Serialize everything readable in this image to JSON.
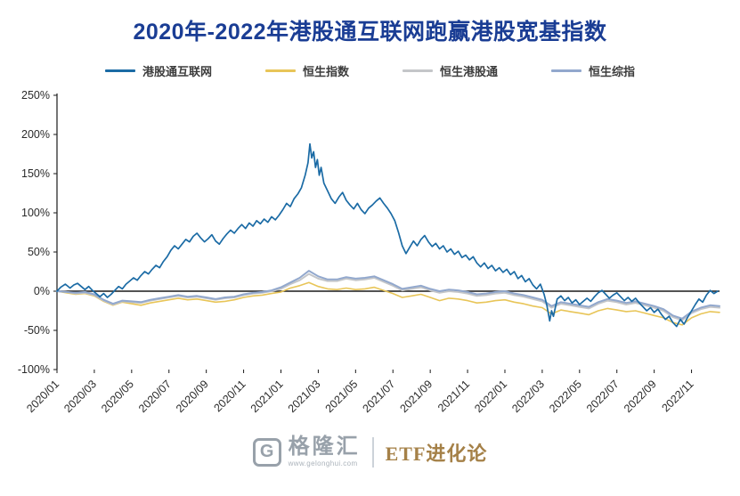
{
  "title": "2020年-2022年港股通互联网跑赢港股宽基指数",
  "colors": {
    "title": "#1a3d94",
    "axis": "#1a1a1a",
    "tick_text": "#2a2a2a"
  },
  "legend": [
    {
      "label": "港股通互联网",
      "color": "#1b6ba5"
    },
    {
      "label": "恒生指数",
      "color": "#e8c558"
    },
    {
      "label": "恒生港股通",
      "color": "#c4c6c9"
    },
    {
      "label": "恒生综指",
      "color": "#92a8cd"
    }
  ],
  "footer": {
    "logo_letter": "G",
    "logo_name": "格隆汇",
    "logo_url": "www.gelonghui.com",
    "brand": "ETF进化论"
  },
  "chart_data": {
    "type": "line",
    "title": "2020年-2022年港股通互联网跑赢港股宽基指数",
    "x_note": "x = months since 2020/01, values are cumulative return in %",
    "xlim": [
      0,
      35.5
    ],
    "ylim": [
      -100,
      250
    ],
    "grid": false,
    "legend_position": "top",
    "y_ticks": [
      250,
      200,
      150,
      100,
      50,
      0,
      -50,
      -100
    ],
    "y_tick_suffix": "%",
    "x_tick_positions": [
      0,
      2,
      4,
      6,
      8,
      10,
      12,
      14,
      16,
      18,
      20,
      22,
      24,
      26,
      28,
      30,
      32,
      34
    ],
    "x_tick_labels": [
      "2020/01",
      "2020/03",
      "2020/05",
      "2020/07",
      "2020/09",
      "2020/11",
      "2021/01",
      "2021/03",
      "2021/05",
      "2021/07",
      "2021/09",
      "2021/11",
      "2022/01",
      "2022/03",
      "2022/05",
      "2022/07",
      "2022/09",
      "2022/11"
    ],
    "series": [
      {
        "name": "恒生指数",
        "color": "#e8c558",
        "width": 1.6,
        "x_start": 0,
        "x_step": 0.5,
        "values": [
          0,
          -2,
          -4,
          -3,
          -6,
          -13,
          -18,
          -14,
          -16,
          -18,
          -15,
          -13,
          -11,
          -9,
          -11,
          -10,
          -12,
          -14,
          -13,
          -11,
          -8,
          -6,
          -5,
          -3,
          -1,
          4,
          7,
          11,
          6,
          3,
          2,
          4,
          2,
          3,
          5,
          1,
          -3,
          -8,
          -6,
          -4,
          -8,
          -12,
          -9,
          -10,
          -12,
          -15,
          -14,
          -12,
          -11,
          -14,
          -16,
          -19,
          -21,
          -29,
          -24,
          -26,
          -28,
          -30,
          -25,
          -22,
          -24,
          -26,
          -25,
          -28,
          -31,
          -34,
          -40,
          -43,
          -34,
          -29,
          -26,
          -27
        ]
      },
      {
        "name": "恒生港股通",
        "color": "#c4c6c9",
        "width": 2,
        "x_start": 0,
        "x_step": 0.5,
        "values": [
          0,
          -1,
          -3,
          -2,
          -5,
          -12,
          -17,
          -13,
          -14,
          -15,
          -12,
          -10,
          -8,
          -6,
          -8,
          -7,
          -9,
          -11,
          -9,
          -8,
          -5,
          -3,
          -2,
          0,
          3,
          9,
          14,
          22,
          16,
          13,
          13,
          16,
          14,
          15,
          17,
          12,
          7,
          1,
          3,
          5,
          1,
          -2,
          0,
          -1,
          -3,
          -6,
          -5,
          -3,
          -2,
          -5,
          -7,
          -10,
          -13,
          -21,
          -16,
          -18,
          -20,
          -22,
          -16,
          -12,
          -14,
          -17,
          -15,
          -18,
          -21,
          -25,
          -33,
          -37,
          -28,
          -23,
          -20,
          -21
        ]
      },
      {
        "name": "恒生综指",
        "color": "#92a8cd",
        "width": 2,
        "x_start": 0,
        "x_step": 0.5,
        "values": [
          0,
          -1,
          -2,
          -1,
          -4,
          -11,
          -16,
          -12,
          -13,
          -14,
          -11,
          -9,
          -7,
          -5,
          -7,
          -6,
          -8,
          -10,
          -8,
          -7,
          -4,
          -2,
          -1,
          1,
          5,
          11,
          17,
          26,
          19,
          15,
          15,
          18,
          16,
          17,
          19,
          14,
          9,
          3,
          5,
          7,
          3,
          0,
          2,
          1,
          -1,
          -4,
          -3,
          -1,
          0,
          -3,
          -5,
          -8,
          -11,
          -19,
          -14,
          -16,
          -18,
          -20,
          -14,
          -10,
          -12,
          -15,
          -13,
          -16,
          -19,
          -23,
          -31,
          -35,
          -26,
          -21,
          -18,
          -19
        ]
      },
      {
        "name": "港股通互联网",
        "color": "#1b6ba5",
        "width": 1.7,
        "points": [
          [
            0,
            0
          ],
          [
            0.2,
            5
          ],
          [
            0.45,
            9
          ],
          [
            0.7,
            4
          ],
          [
            0.9,
            8
          ],
          [
            1.1,
            10
          ],
          [
            1.3,
            6
          ],
          [
            1.5,
            2
          ],
          [
            1.7,
            6
          ],
          [
            1.9,
            1
          ],
          [
            2.1,
            -3
          ],
          [
            2.3,
            -7
          ],
          [
            2.5,
            -3
          ],
          [
            2.7,
            -8
          ],
          [
            2.9,
            -4
          ],
          [
            3.1,
            1
          ],
          [
            3.3,
            6
          ],
          [
            3.5,
            3
          ],
          [
            3.7,
            9
          ],
          [
            3.9,
            13
          ],
          [
            4.1,
            17
          ],
          [
            4.3,
            14
          ],
          [
            4.5,
            20
          ],
          [
            4.7,
            25
          ],
          [
            4.9,
            22
          ],
          [
            5.1,
            28
          ],
          [
            5.3,
            33
          ],
          [
            5.5,
            30
          ],
          [
            5.7,
            38
          ],
          [
            5.9,
            44
          ],
          [
            6.1,
            52
          ],
          [
            6.3,
            58
          ],
          [
            6.5,
            54
          ],
          [
            6.7,
            60
          ],
          [
            6.9,
            66
          ],
          [
            7.1,
            63
          ],
          [
            7.3,
            70
          ],
          [
            7.5,
            74
          ],
          [
            7.7,
            68
          ],
          [
            7.9,
            63
          ],
          [
            8.1,
            67
          ],
          [
            8.3,
            72
          ],
          [
            8.5,
            64
          ],
          [
            8.7,
            60
          ],
          [
            8.9,
            67
          ],
          [
            9.1,
            73
          ],
          [
            9.3,
            78
          ],
          [
            9.5,
            74
          ],
          [
            9.7,
            80
          ],
          [
            9.9,
            85
          ],
          [
            10.1,
            80
          ],
          [
            10.3,
            87
          ],
          [
            10.5,
            83
          ],
          [
            10.7,
            90
          ],
          [
            10.9,
            86
          ],
          [
            11.1,
            92
          ],
          [
            11.3,
            88
          ],
          [
            11.5,
            95
          ],
          [
            11.7,
            91
          ],
          [
            11.9,
            97
          ],
          [
            12.1,
            104
          ],
          [
            12.3,
            112
          ],
          [
            12.5,
            108
          ],
          [
            12.7,
            118
          ],
          [
            12.9,
            124
          ],
          [
            13.1,
            132
          ],
          [
            13.3,
            148
          ],
          [
            13.45,
            164
          ],
          [
            13.55,
            188
          ],
          [
            13.65,
            170
          ],
          [
            13.75,
            178
          ],
          [
            13.85,
            158
          ],
          [
            13.95,
            168
          ],
          [
            14.05,
            148
          ],
          [
            14.15,
            158
          ],
          [
            14.3,
            138
          ],
          [
            14.5,
            128
          ],
          [
            14.7,
            118
          ],
          [
            14.9,
            112
          ],
          [
            15.1,
            120
          ],
          [
            15.3,
            126
          ],
          [
            15.5,
            116
          ],
          [
            15.7,
            110
          ],
          [
            15.9,
            105
          ],
          [
            16.1,
            112
          ],
          [
            16.3,
            104
          ],
          [
            16.5,
            99
          ],
          [
            16.7,
            106
          ],
          [
            16.9,
            110
          ],
          [
            17.1,
            115
          ],
          [
            17.3,
            119
          ],
          [
            17.5,
            112
          ],
          [
            17.7,
            106
          ],
          [
            17.9,
            99
          ],
          [
            18.1,
            90
          ],
          [
            18.3,
            75
          ],
          [
            18.5,
            58
          ],
          [
            18.7,
            48
          ],
          [
            18.9,
            56
          ],
          [
            19.1,
            64
          ],
          [
            19.3,
            58
          ],
          [
            19.5,
            66
          ],
          [
            19.7,
            71
          ],
          [
            19.9,
            63
          ],
          [
            20.1,
            57
          ],
          [
            20.3,
            61
          ],
          [
            20.5,
            54
          ],
          [
            20.7,
            58
          ],
          [
            20.9,
            50
          ],
          [
            21.1,
            54
          ],
          [
            21.3,
            47
          ],
          [
            21.5,
            51
          ],
          [
            21.7,
            43
          ],
          [
            21.9,
            46
          ],
          [
            22.1,
            40
          ],
          [
            22.3,
            44
          ],
          [
            22.5,
            36
          ],
          [
            22.7,
            31
          ],
          [
            22.9,
            36
          ],
          [
            23.1,
            29
          ],
          [
            23.3,
            33
          ],
          [
            23.5,
            26
          ],
          [
            23.7,
            30
          ],
          [
            23.9,
            24
          ],
          [
            24.1,
            28
          ],
          [
            24.3,
            21
          ],
          [
            24.5,
            25
          ],
          [
            24.7,
            16
          ],
          [
            24.9,
            20
          ],
          [
            25.1,
            12
          ],
          [
            25.3,
            16
          ],
          [
            25.5,
            8
          ],
          [
            25.7,
            3
          ],
          [
            25.9,
            9
          ],
          [
            26.1,
            -4
          ],
          [
            26.25,
            -18
          ],
          [
            26.4,
            -38
          ],
          [
            26.5,
            -25
          ],
          [
            26.6,
            -32
          ],
          [
            26.8,
            -10
          ],
          [
            27.0,
            -6
          ],
          [
            27.2,
            -12
          ],
          [
            27.4,
            -8
          ],
          [
            27.6,
            -15
          ],
          [
            27.8,
            -11
          ],
          [
            28.0,
            -17
          ],
          [
            28.2,
            -13
          ],
          [
            28.4,
            -9
          ],
          [
            28.6,
            -13
          ],
          [
            28.8,
            -7
          ],
          [
            29.0,
            -2
          ],
          [
            29.2,
            1
          ],
          [
            29.4,
            -4
          ],
          [
            29.6,
            -9
          ],
          [
            29.8,
            -5
          ],
          [
            30.0,
            -2
          ],
          [
            30.2,
            -7
          ],
          [
            30.4,
            -12
          ],
          [
            30.6,
            -8
          ],
          [
            30.8,
            -13
          ],
          [
            31.0,
            -9
          ],
          [
            31.2,
            -15
          ],
          [
            31.4,
            -20
          ],
          [
            31.6,
            -25
          ],
          [
            31.8,
            -21
          ],
          [
            32.0,
            -27
          ],
          [
            32.2,
            -23
          ],
          [
            32.4,
            -30
          ],
          [
            32.6,
            -36
          ],
          [
            32.8,
            -32
          ],
          [
            33.0,
            -40
          ],
          [
            33.2,
            -45
          ],
          [
            33.4,
            -36
          ],
          [
            33.6,
            -42
          ],
          [
            33.8,
            -33
          ],
          [
            34.0,
            -25
          ],
          [
            34.2,
            -17
          ],
          [
            34.4,
            -10
          ],
          [
            34.6,
            -14
          ],
          [
            34.8,
            -5
          ],
          [
            35.0,
            1
          ],
          [
            35.2,
            -3
          ],
          [
            35.4,
            0
          ]
        ]
      }
    ]
  }
}
